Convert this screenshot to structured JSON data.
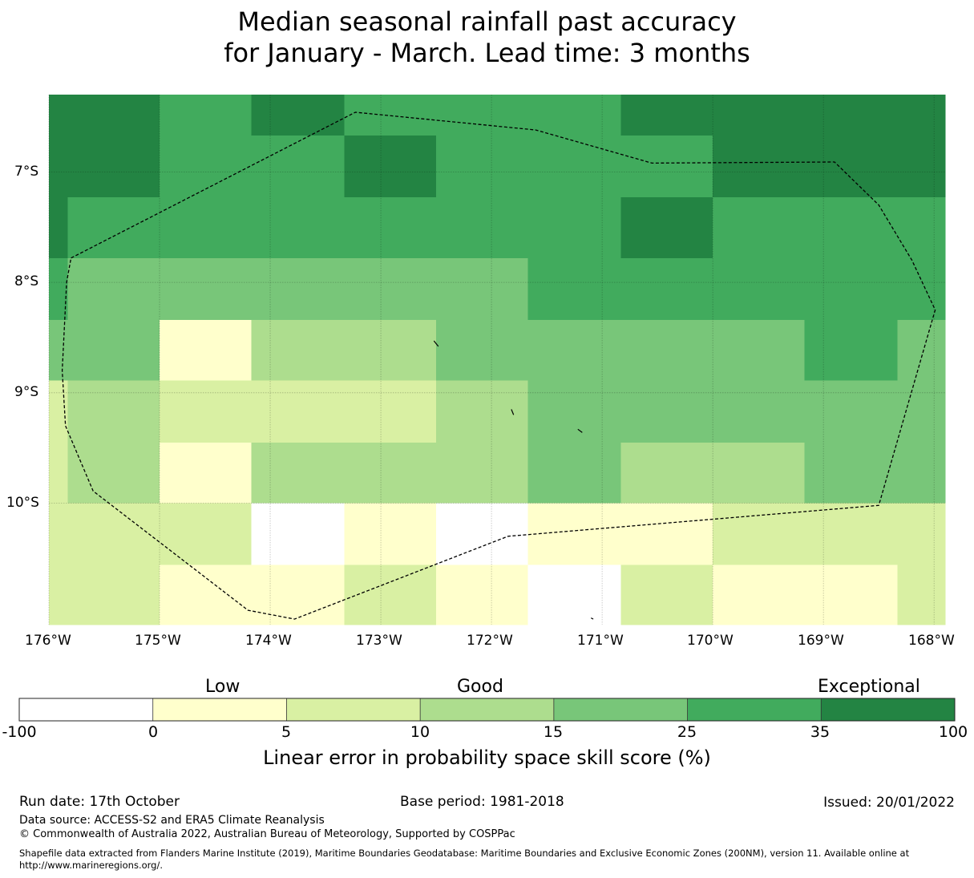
{
  "title": {
    "line1": "Median seasonal rainfall past accuracy",
    "line2": "for January - March. Lead time: 3 months"
  },
  "map": {
    "lat_labels": [
      "7°S",
      "8°S",
      "9°S",
      "10°S"
    ],
    "lon_labels": [
      "176°W",
      "175°W",
      "174°W",
      "173°W",
      "172°W",
      "171°W",
      "170°W",
      "169°W",
      "168°W"
    ],
    "lat_range": [
      -11.1,
      -6.3
    ],
    "lon_range": [
      -176.0,
      -167.9
    ],
    "cell_edges_lon": [
      -176.0,
      -175.83,
      -175.0,
      -174.17,
      -173.33,
      -172.5,
      -171.67,
      -170.83,
      -170.0,
      -169.17,
      -168.33,
      -167.9
    ],
    "cell_edges_lat": [
      -6.3,
      -6.67,
      -7.23,
      -7.78,
      -8.34,
      -8.89,
      -9.45,
      -10.0,
      -10.56,
      -11.1
    ],
    "skill_category_grid": [
      [
        6,
        6,
        5,
        6,
        5,
        5,
        5,
        6,
        6,
        6,
        6
      ],
      [
        6,
        6,
        5,
        5,
        6,
        5,
        5,
        5,
        6,
        6,
        6
      ],
      [
        6,
        5,
        5,
        5,
        5,
        5,
        5,
        6,
        5,
        5,
        5
      ],
      [
        5,
        4,
        4,
        4,
        4,
        4,
        5,
        5,
        5,
        5,
        5
      ],
      [
        4,
        4,
        1,
        3,
        3,
        4,
        4,
        4,
        4,
        5,
        4
      ],
      [
        2,
        3,
        2,
        2,
        2,
        3,
        4,
        4,
        4,
        4,
        4
      ],
      [
        2,
        3,
        1,
        3,
        3,
        3,
        4,
        3,
        3,
        4,
        4
      ],
      [
        2,
        2,
        2,
        0,
        1,
        0,
        1,
        1,
        2,
        2,
        2
      ],
      [
        2,
        2,
        1,
        1,
        2,
        1,
        0,
        2,
        1,
        1,
        2
      ]
    ],
    "eez_boundary_lonlat": [
      [
        -175.8,
        -7.78
      ],
      [
        -173.23,
        -6.46
      ],
      [
        -171.6,
        -6.62
      ],
      [
        -170.55,
        -6.92
      ],
      [
        -168.9,
        -6.91
      ],
      [
        -168.5,
        -7.3
      ],
      [
        -168.2,
        -7.8
      ],
      [
        -167.99,
        -8.25
      ],
      [
        -168.5,
        -10.02
      ],
      [
        -171.85,
        -10.3
      ],
      [
        -173.78,
        -11.05
      ],
      [
        -174.2,
        -10.97
      ],
      [
        -175.6,
        -9.89
      ],
      [
        -175.85,
        -9.3
      ],
      [
        -175.88,
        -8.8
      ],
      [
        -175.84,
        -8.0
      ]
    ],
    "islands_lonlat": [
      [
        [
          -172.52,
          -8.53
        ],
        [
          -172.48,
          -8.58
        ]
      ],
      [
        [
          -171.82,
          -9.15
        ],
        [
          -171.8,
          -9.2
        ]
      ],
      [
        [
          -171.22,
          -9.33
        ],
        [
          -171.18,
          -9.36
        ]
      ],
      [
        [
          -171.1,
          -11.04
        ],
        [
          -171.08,
          -11.05
        ]
      ]
    ]
  },
  "colorbar": {
    "category_labels": [
      "Low",
      "Good",
      "Exceptional"
    ],
    "ticks": [
      "-100",
      "0",
      "5",
      "10",
      "15",
      "25",
      "35",
      "100"
    ],
    "colors": [
      "#ffffff",
      "#ffffcc",
      "#d9f0a3",
      "#addd8e",
      "#78c679",
      "#41ab5d",
      "#238443"
    ],
    "xlabel": "Linear error in probability space skill score (%)"
  },
  "footer": {
    "run_date": "Run date: 17th October",
    "base_period": "Base period: 1981-2018",
    "issued": "Issued: 20/01/2022",
    "data_source": "Data source: ACCESS-S2 and ERA5 Climate Reanalysis",
    "copyright": "© Commonwealth of Australia 2022, Australian Bureau of Meteorology, Supported by COSPPac",
    "shapefile_line1": "Shapefile data extracted from Flanders Marine Institute (2019), Maritime Boundaries Geodatabase: Maritime Boundaries and Exclusive Economic Zones (200NM), version 11. Available online at",
    "shapefile_line2": "http://www.marineregions.org/."
  }
}
